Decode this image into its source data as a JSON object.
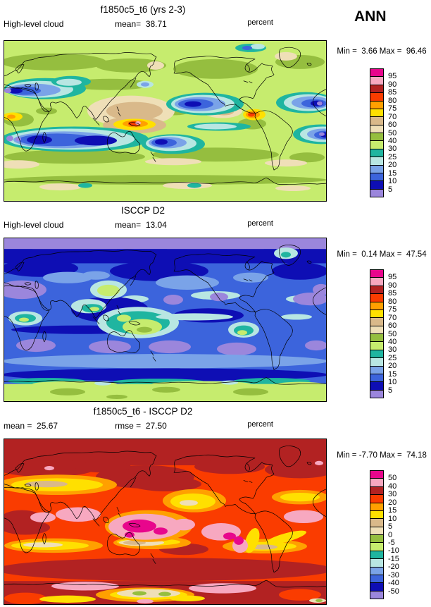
{
  "season": "ANN",
  "palette16": [
    "#E8068C",
    "#F7A8C0",
    "#B22222",
    "#FA3C00",
    "#FFA000",
    "#FFE000",
    "#D9B98A",
    "#EFDFB7",
    "#95BE3F",
    "#C6EC6E",
    "#1FB5A0",
    "#B8E6E2",
    "#7AA3E8",
    "#3C64DC",
    "#0E0EB4",
    "#9B86DC"
  ],
  "panels": [
    {
      "title": "f1850c5_t6 (yrs 2-3)",
      "left_label": "High-level cloud",
      "center_label": "mean=  38.71",
      "units": "percent",
      "minmax": "Min =  3.66 Max =  96.46",
      "levels": [
        "95",
        "90",
        "85",
        "80",
        "75",
        "70",
        "60",
        "50",
        "40",
        "30",
        "25",
        "20",
        "15",
        "10",
        "5"
      ]
    },
    {
      "title": "ISCCP D2",
      "left_label": "High-level cloud",
      "center_label": "mean=  13.04",
      "units": "percent",
      "minmax": "Min =  0.14 Max =  47.54",
      "levels": [
        "95",
        "90",
        "85",
        "80",
        "75",
        "70",
        "60",
        "50",
        "40",
        "30",
        "25",
        "20",
        "15",
        "10",
        "5"
      ]
    },
    {
      "title": "f1850c5_t6 - ISCCP D2",
      "left_label": "mean =  25.67",
      "center_label": "rmse =  27.50",
      "units": "percent",
      "minmax": "Min = -7.70 Max =  74.18",
      "levels": [
        "50",
        "40",
        "30",
        "20",
        "15",
        "10",
        "5",
        "0",
        "-5",
        "-10",
        "-15",
        "-20",
        "-30",
        "-40",
        "-50"
      ]
    }
  ],
  "chart_data": [
    {
      "type": "heatmap",
      "subtype": "filled-contour-global-map",
      "title": "f1850c5_t6 (yrs 2-3)",
      "variable": "High-level cloud",
      "units": "percent",
      "season": "ANN",
      "stats": {
        "mean": 38.71,
        "min": 3.66,
        "max": 96.46
      },
      "contour_levels": [
        5,
        10,
        15,
        20,
        25,
        30,
        40,
        50,
        60,
        70,
        75,
        80,
        85,
        90,
        95
      ],
      "legend_position": "right",
      "notable_regions": [
        "mid-latitudes broadly 30-50% (green)",
        "subtropical minima 5-20% (blue/navy ovals) over NE Pacific, N Atlantic, Sahara/Middle East, S Indian, S Pacific, S Atlantic",
        "maxima 70-95% (yellow/orange/red, pink spots) over Maritime Continent and NW South America",
        "tan/beige 50-70% band over S/SE Asia and subtropics"
      ]
    },
    {
      "type": "heatmap",
      "subtype": "filled-contour-global-map",
      "title": "ISCCP D2",
      "variable": "High-level cloud",
      "units": "percent",
      "season": "ANN",
      "stats": {
        "mean": 13.04,
        "min": 0.14,
        "max": 47.54
      },
      "contour_levels": [
        5,
        10,
        15,
        20,
        25,
        30,
        40,
        50,
        60,
        70,
        75,
        80,
        85,
        90,
        95
      ],
      "legend_position": "right",
      "notable_regions": [
        "oceans mostly 5-20% (blue/navy)",
        "below 5% (purple) polar cap band and subtropical patches (Sahara, S-hemisphere ovals)",
        "25-40% (teal/green) over Tibet, Maritime Continent, tropical Africa and S America",
        "30-40% (light green) over Antarctica"
      ]
    },
    {
      "type": "heatmap",
      "subtype": "filled-contour-global-map-difference",
      "title": "f1850c5_t6 - ISCCP D2",
      "variable": "High-level cloud difference",
      "units": "percent",
      "season": "ANN",
      "stats": {
        "mean": 25.67,
        "rmse": 27.5,
        "min": -7.7,
        "max": 74.18
      },
      "contour_levels": [
        -50,
        -40,
        -30,
        -20,
        -15,
        -10,
        -5,
        0,
        5,
        10,
        15,
        20,
        30,
        40,
        50
      ],
      "legend_position": "right",
      "notable_regions": [
        "positive bias everywhere shown: 20-40% (orange-red/dark red) dominant",
        "over 50% (pink/magenta) over Maritime Continent, tropical Indian Ocean, Central/South America, parts of Antarctica",
        "5-15% (tan/yellow) bands over Mediterranean-Middle East, SW North America and S-hemisphere subtropics",
        "small 0-5% / slightly negative (beige/green) patches near Antarctic coast"
      ]
    }
  ]
}
